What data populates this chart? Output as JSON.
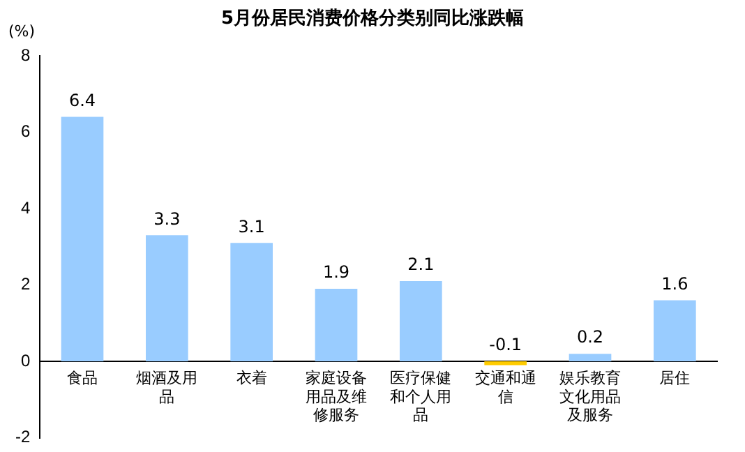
{
  "chart_data": {
    "type": "bar",
    "title": "5月份居民消费价格分类别同比涨跌幅",
    "ylabel": "(%)",
    "categories": [
      "食品",
      "烟酒及用品",
      "衣着",
      "家庭设备用品及维修服务",
      "医疗保健和个人用品",
      "交通和通信",
      "娱乐教育文化用品及服务",
      "居住"
    ],
    "values": [
      6.4,
      3.3,
      3.1,
      1.9,
      2.1,
      -0.1,
      0.2,
      1.6
    ],
    "colors": [
      "#99ccff",
      "#99ccff",
      "#99ccff",
      "#99ccff",
      "#99ccff",
      "#ffcc00",
      "#99ccff",
      "#99ccff"
    ],
    "ylim": [
      -2,
      8
    ],
    "yticks": [
      -2,
      0,
      2,
      4,
      6,
      8
    ],
    "grid": false,
    "legend": false,
    "data_labels": true
  }
}
